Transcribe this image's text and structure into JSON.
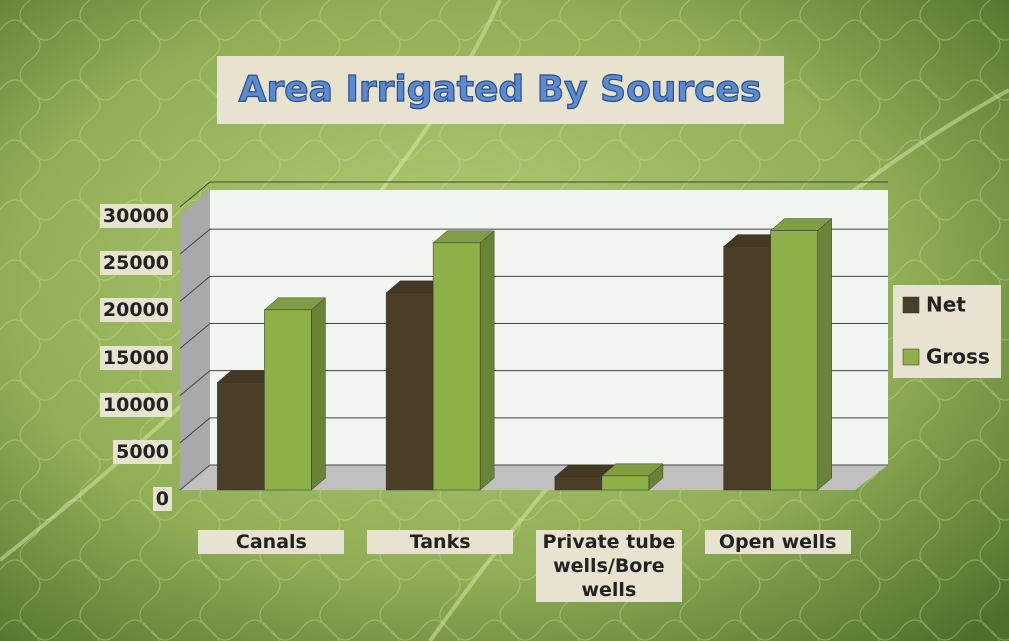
{
  "chart_data": {
    "type": "bar3d",
    "title": "Area Irrigated By Sources",
    "categories": [
      "Canals",
      "Tanks",
      "Private tube wells/Bore wells",
      "Open wells"
    ],
    "series": [
      {
        "name": "Net",
        "color": "#4a3f26",
        "values": [
          11400,
          20900,
          1400,
          25800
        ]
      },
      {
        "name": "Gross",
        "color": "#8db048",
        "values": [
          19100,
          26200,
          1500,
          27500
        ]
      }
    ],
    "ylim": [
      0,
      30000
    ],
    "yticks": [
      0,
      5000,
      10000,
      15000,
      20000,
      25000,
      30000
    ],
    "grid": true,
    "legend": "right"
  }
}
